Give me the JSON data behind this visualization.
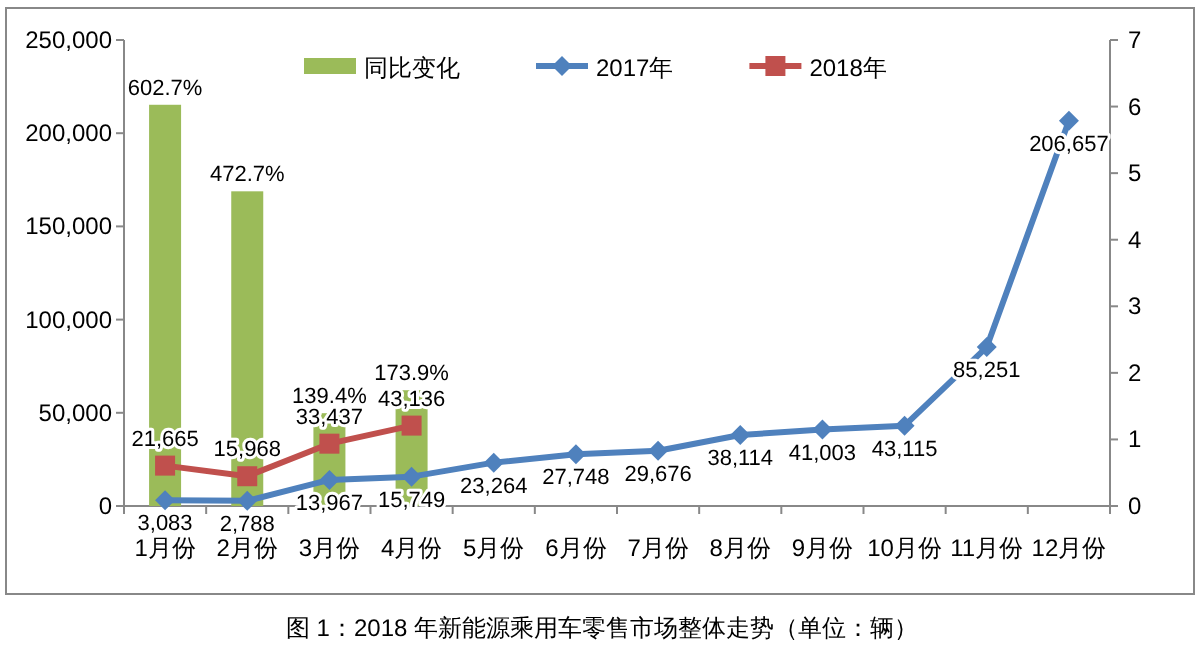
{
  "chart_data": {
    "type": "line",
    "categories": [
      "1月份",
      "2月份",
      "3月份",
      "4月份",
      "5月份",
      "6月份",
      "7月份",
      "8月份",
      "9月份",
      "10月份",
      "11月份",
      "12月份"
    ],
    "ylim": [
      0,
      250000
    ],
    "yticks": [
      {
        "value": 0,
        "label": "0"
      },
      {
        "value": 50000,
        "label": "50,000"
      },
      {
        "value": 100000,
        "label": "100,000"
      },
      {
        "value": 150000,
        "label": "150,000"
      },
      {
        "value": 200000,
        "label": "200,000"
      },
      {
        "value": 250000,
        "label": "250,000"
      }
    ],
    "y2lim": [
      0,
      7
    ],
    "y2ticks": [
      0,
      1,
      2,
      3,
      4,
      5,
      6,
      7
    ],
    "legend": "top",
    "grid": false,
    "annotations": [
      "图 1：2018 年新能源乘用车零售市场整体走势（单位：辆）"
    ],
    "series": [
      {
        "name": "同比变化",
        "type": "bar",
        "axis": "y2",
        "color": "#9bbb59",
        "values": [
          6.027,
          4.727,
          1.394,
          1.739,
          null,
          null,
          null,
          null,
          null,
          null,
          null,
          null
        ],
        "value_labels": [
          "602.7%",
          "472.7%",
          "139.4%",
          "173.9%",
          null,
          null,
          null,
          null,
          null,
          null,
          null,
          null
        ]
      },
      {
        "name": "2017年",
        "color": "#4f81bd",
        "marker": "diamond",
        "values": [
          3083,
          2788,
          13967,
          15749,
          23264,
          27748,
          29676,
          38114,
          41003,
          43115,
          85251,
          206657
        ],
        "value_labels": [
          "3,083",
          "2,788",
          "13,967",
          "15,749",
          "23,264",
          "27,748",
          "29,676",
          "38,114",
          "41,003",
          "43,115",
          "85,251",
          "206,657"
        ]
      },
      {
        "name": "2018年",
        "color": "#c0504d",
        "marker": "square",
        "values": [
          21665,
          15968,
          33437,
          43136,
          null,
          null,
          null,
          null,
          null,
          null,
          null,
          null
        ],
        "value_labels": [
          "21,665",
          "15,968",
          "33,437",
          "43,136",
          null,
          null,
          null,
          null,
          null,
          null,
          null,
          null
        ]
      }
    ]
  }
}
